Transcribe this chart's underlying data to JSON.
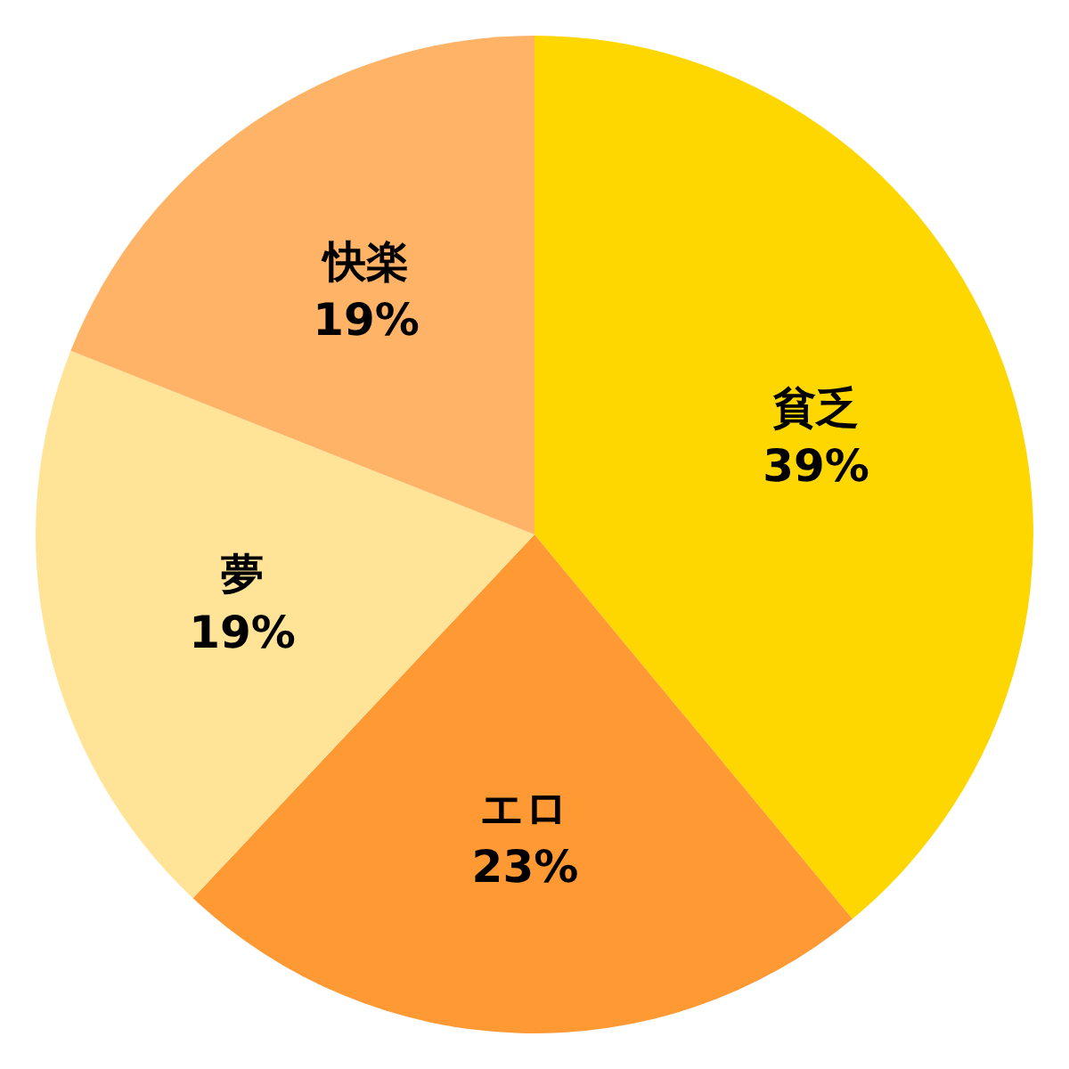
{
  "chart_data": {
    "type": "pie",
    "categories": [
      "貧乏",
      "エロ",
      "夢",
      "快楽"
    ],
    "values": [
      39,
      23,
      19,
      19
    ],
    "colors": [
      "#ffd700",
      "#ff9933",
      "#ffe397",
      "#ffb366"
    ],
    "value_labels": [
      "39%",
      "23%",
      "19%",
      "19%"
    ]
  }
}
